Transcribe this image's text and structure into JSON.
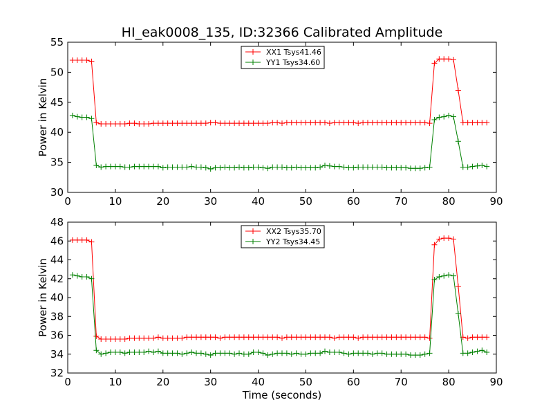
{
  "chart_data": [
    {
      "type": "line",
      "title": "HI_eak0008_135, ID:32366 Calibrated Amplitude",
      "xlabel": "",
      "ylabel": "Power in Kelvin",
      "xlim": [
        0,
        90
      ],
      "ylim": [
        30,
        55
      ],
      "xticks": [
        "0",
        "10",
        "20",
        "30",
        "40",
        "50",
        "60",
        "70",
        "80",
        "90"
      ],
      "yticks": [
        "30",
        "35",
        "40",
        "45",
        "50",
        "55"
      ],
      "grid": false,
      "legend_position": "top-center",
      "x": [
        1,
        2,
        3,
        4,
        5,
        6,
        7,
        8,
        9,
        10,
        11,
        12,
        13,
        14,
        15,
        16,
        17,
        18,
        19,
        20,
        21,
        22,
        23,
        24,
        25,
        26,
        27,
        28,
        29,
        30,
        31,
        32,
        33,
        34,
        35,
        36,
        37,
        38,
        39,
        40,
        41,
        42,
        43,
        44,
        45,
        46,
        47,
        48,
        49,
        50,
        51,
        52,
        53,
        54,
        55,
        56,
        57,
        58,
        59,
        60,
        61,
        62,
        63,
        64,
        65,
        66,
        67,
        68,
        69,
        70,
        71,
        72,
        73,
        74,
        75,
        76,
        77,
        78,
        79,
        80,
        81,
        82,
        83,
        84,
        85,
        86,
        87,
        88
      ],
      "series": [
        {
          "name": "XX1 Tsys41.46",
          "color": "#ff0000",
          "values": [
            52.0,
            52.0,
            52.0,
            52.0,
            51.8,
            41.6,
            41.4,
            41.4,
            41.4,
            41.4,
            41.4,
            41.4,
            41.5,
            41.5,
            41.4,
            41.4,
            41.4,
            41.5,
            41.5,
            41.5,
            41.5,
            41.5,
            41.5,
            41.5,
            41.5,
            41.5,
            41.5,
            41.5,
            41.5,
            41.6,
            41.6,
            41.5,
            41.5,
            41.5,
            41.5,
            41.5,
            41.5,
            41.5,
            41.5,
            41.5,
            41.5,
            41.5,
            41.6,
            41.6,
            41.5,
            41.6,
            41.6,
            41.6,
            41.6,
            41.6,
            41.6,
            41.6,
            41.6,
            41.6,
            41.5,
            41.6,
            41.6,
            41.6,
            41.6,
            41.6,
            41.5,
            41.6,
            41.6,
            41.6,
            41.6,
            41.6,
            41.6,
            41.6,
            41.6,
            41.6,
            41.6,
            41.6,
            41.6,
            41.6,
            41.6,
            41.5,
            51.5,
            52.2,
            52.2,
            52.2,
            52.1,
            47.0,
            41.6,
            41.6,
            41.6,
            41.6,
            41.6,
            41.6
          ]
        },
        {
          "name": "YY1 Tsys34.60",
          "color": "#008000",
          "values": [
            42.8,
            42.6,
            42.5,
            42.5,
            42.3,
            34.5,
            34.2,
            34.3,
            34.3,
            34.3,
            34.3,
            34.2,
            34.2,
            34.3,
            34.3,
            34.3,
            34.3,
            34.3,
            34.3,
            34.1,
            34.2,
            34.2,
            34.2,
            34.2,
            34.2,
            34.3,
            34.2,
            34.2,
            34.1,
            33.9,
            34.1,
            34.1,
            34.2,
            34.1,
            34.1,
            34.2,
            34.1,
            34.1,
            34.2,
            34.2,
            34.1,
            34.0,
            34.2,
            34.2,
            34.2,
            34.1,
            34.1,
            34.2,
            34.1,
            34.1,
            34.1,
            34.1,
            34.2,
            34.5,
            34.4,
            34.3,
            34.3,
            34.2,
            34.1,
            34.1,
            34.2,
            34.2,
            34.2,
            34.2,
            34.2,
            34.2,
            34.1,
            34.1,
            34.1,
            34.1,
            34.1,
            34.0,
            34.0,
            34.0,
            34.1,
            34.2,
            42.1,
            42.5,
            42.6,
            42.8,
            42.6,
            38.5,
            34.2,
            34.2,
            34.3,
            34.4,
            34.5,
            34.3
          ]
        }
      ]
    },
    {
      "type": "line",
      "title": "",
      "xlabel": "Time (seconds)",
      "ylabel": "Power in Kelvin",
      "xlim": [
        0,
        90
      ],
      "ylim": [
        32,
        48
      ],
      "xticks": [
        "0",
        "10",
        "20",
        "30",
        "40",
        "50",
        "60",
        "70",
        "80",
        "90"
      ],
      "yticks": [
        "32",
        "34",
        "36",
        "38",
        "40",
        "42",
        "44",
        "46",
        "48"
      ],
      "grid": false,
      "legend_position": "top-center",
      "x": [
        1,
        2,
        3,
        4,
        5,
        6,
        7,
        8,
        9,
        10,
        11,
        12,
        13,
        14,
        15,
        16,
        17,
        18,
        19,
        20,
        21,
        22,
        23,
        24,
        25,
        26,
        27,
        28,
        29,
        30,
        31,
        32,
        33,
        34,
        35,
        36,
        37,
        38,
        39,
        40,
        41,
        42,
        43,
        44,
        45,
        46,
        47,
        48,
        49,
        50,
        51,
        52,
        53,
        54,
        55,
        56,
        57,
        58,
        59,
        60,
        61,
        62,
        63,
        64,
        65,
        66,
        67,
        68,
        69,
        70,
        71,
        72,
        73,
        74,
        75,
        76,
        77,
        78,
        79,
        80,
        81,
        82,
        83,
        84,
        85,
        86,
        87,
        88
      ],
      "series": [
        {
          "name": "XX2 Tsys35.70",
          "color": "#ff0000",
          "values": [
            46.1,
            46.1,
            46.1,
            46.1,
            45.9,
            35.9,
            35.6,
            35.6,
            35.6,
            35.6,
            35.6,
            35.6,
            35.7,
            35.7,
            35.7,
            35.7,
            35.7,
            35.7,
            35.8,
            35.7,
            35.7,
            35.7,
            35.7,
            35.7,
            35.8,
            35.8,
            35.8,
            35.8,
            35.8,
            35.8,
            35.8,
            35.7,
            35.8,
            35.8,
            35.8,
            35.8,
            35.8,
            35.8,
            35.8,
            35.8,
            35.8,
            35.8,
            35.8,
            35.8,
            35.7,
            35.8,
            35.8,
            35.8,
            35.8,
            35.8,
            35.8,
            35.8,
            35.8,
            35.8,
            35.8,
            35.7,
            35.8,
            35.8,
            35.8,
            35.8,
            35.7,
            35.8,
            35.8,
            35.8,
            35.8,
            35.8,
            35.8,
            35.8,
            35.8,
            35.8,
            35.8,
            35.8,
            35.8,
            35.8,
            35.8,
            35.7,
            45.6,
            46.2,
            46.3,
            46.3,
            46.2,
            41.2,
            35.8,
            35.7,
            35.8,
            35.8,
            35.8,
            35.8
          ]
        },
        {
          "name": "YY2 Tsys34.45",
          "color": "#008000",
          "values": [
            42.4,
            42.3,
            42.2,
            42.2,
            42.0,
            34.4,
            34.0,
            34.1,
            34.2,
            34.2,
            34.2,
            34.1,
            34.2,
            34.2,
            34.2,
            34.2,
            34.3,
            34.2,
            34.3,
            34.1,
            34.1,
            34.1,
            34.1,
            34.0,
            34.1,
            34.2,
            34.1,
            34.1,
            34.0,
            33.9,
            34.1,
            34.1,
            34.1,
            34.1,
            34.0,
            34.1,
            34.0,
            34.0,
            34.2,
            34.2,
            34.1,
            33.9,
            34.0,
            34.1,
            34.1,
            34.1,
            34.0,
            34.1,
            34.0,
            34.0,
            34.1,
            34.1,
            34.1,
            34.3,
            34.2,
            34.2,
            34.2,
            34.1,
            34.0,
            34.1,
            34.1,
            34.1,
            34.1,
            34.0,
            34.1,
            34.1,
            34.0,
            34.0,
            34.0,
            34.0,
            34.0,
            33.9,
            33.9,
            33.9,
            34.0,
            34.1,
            41.9,
            42.2,
            42.3,
            42.4,
            42.3,
            38.3,
            34.1,
            34.1,
            34.2,
            34.3,
            34.4,
            34.2
          ]
        }
      ]
    }
  ]
}
